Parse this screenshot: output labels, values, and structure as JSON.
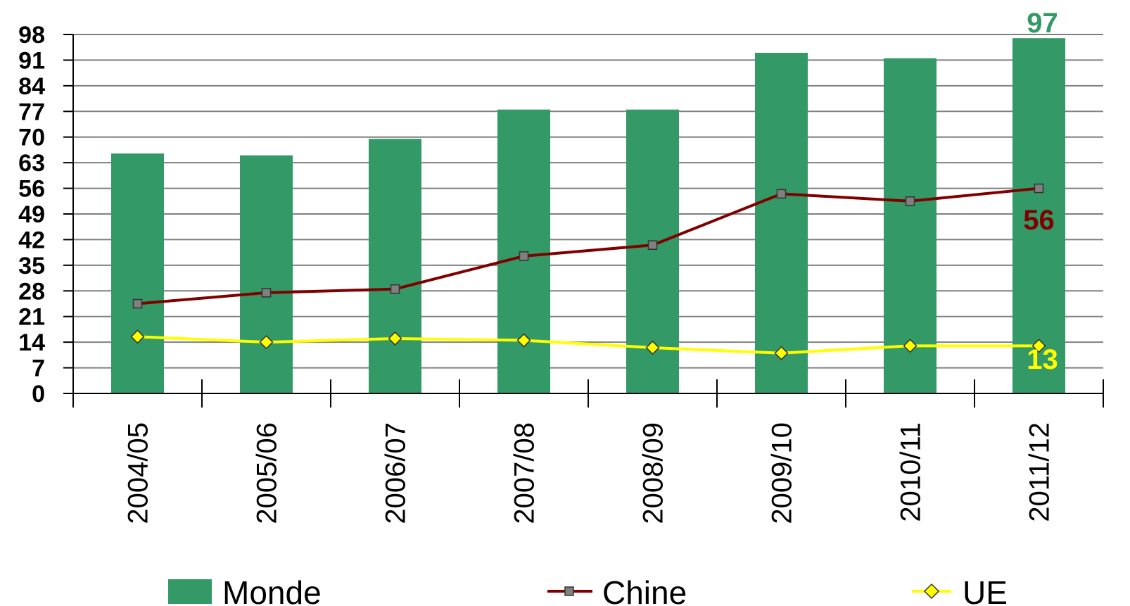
{
  "chart_data": {
    "type": "bar",
    "title": "",
    "xlabel": "",
    "ylabel": "",
    "categories": [
      "2004/05",
      "2005/06",
      "2006/07",
      "2007/08",
      "2008/09",
      "2009/10",
      "2010/11",
      "2011/12"
    ],
    "y_ticks": [
      0,
      7,
      14,
      21,
      28,
      35,
      42,
      49,
      56,
      63,
      70,
      77,
      84,
      91,
      98
    ],
    "ylim": [
      0,
      98
    ],
    "grid": true,
    "legend_position": "bottom",
    "series": [
      {
        "name": "Monde",
        "type": "bar",
        "color": "#339966",
        "values": [
          65.5,
          65,
          69.5,
          77.5,
          77.5,
          93,
          91.5,
          97
        ]
      },
      {
        "name": "Chine",
        "type": "line",
        "marker": "square",
        "color": "#800000",
        "marker_color": "#808080",
        "values": [
          24.5,
          27.5,
          28.5,
          37.5,
          40.5,
          54.5,
          52.5,
          56
        ]
      },
      {
        "name": "UE",
        "type": "line",
        "marker": "diamond",
        "color": "#FFFF00",
        "marker_color": "#FFFF00",
        "values": [
          15.5,
          14,
          15,
          14.5,
          12.5,
          11,
          13,
          13
        ]
      }
    ],
    "data_labels": [
      {
        "series": "Monde",
        "category": "2011/12",
        "text": "97",
        "color": "#339966"
      },
      {
        "series": "Chine",
        "category": "2011/12",
        "text": "56",
        "color": "#800000"
      },
      {
        "series": "UE",
        "category": "2011/12",
        "text": "13",
        "color": "#FFFF00"
      }
    ]
  }
}
